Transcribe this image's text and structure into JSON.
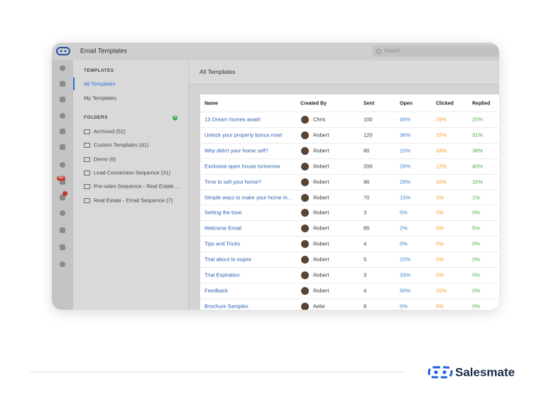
{
  "header": {
    "title": "Email Templates",
    "search_placeholder": "Search"
  },
  "rail": {
    "badge": "99+"
  },
  "sidebar": {
    "templates_heading": "TEMPLATES",
    "templates": [
      "All Templates",
      "My Templates"
    ],
    "folders_heading": "FOLDERS",
    "folders_count": "4",
    "folders": [
      "Archived (52)",
      "Custom Templates (41)",
      "Demo (6)",
      "Lead Conversion Sequence (31)",
      "Pre-sales Sequence - Real Estate ...",
      "Real Estate - Email Sequence (7)"
    ]
  },
  "main": {
    "title": "All Templates",
    "table": {
      "columns": [
        "Name",
        "Created By",
        "Sent",
        "Open",
        "Clicked",
        "Replied"
      ],
      "rows": [
        [
          "13 Dream homes await!",
          "Chris",
          "100",
          "46%",
          "29%",
          "20%"
        ],
        [
          "Unlock your property bonus now!",
          "Robert",
          "120",
          "38%",
          "15%",
          "31%"
        ],
        [
          "Why didn't your home sell?",
          "Robert",
          "80",
          "10%",
          "33%",
          "38%"
        ],
        [
          "Exclusive open house tomorrow",
          "Robert",
          "200",
          "26%",
          "12%",
          "40%"
        ],
        [
          "Time to sell your home?",
          "Robert",
          "90",
          "29%",
          "10%",
          "10%"
        ],
        [
          "Simple ways to make your home m...",
          "Robert",
          "70",
          "15%",
          "3%",
          "1%"
        ],
        [
          "Setting the tone",
          "Robert",
          "3",
          "0%",
          "0%",
          "0%"
        ],
        [
          "Welcome Email",
          "Robert",
          "85",
          "2%",
          "0%",
          "5%"
        ],
        [
          "Tips and Tricks",
          "Robert",
          "4",
          "0%",
          "0%",
          "0%"
        ],
        [
          "Trial about to expire",
          "Robert",
          "5",
          "20%",
          "0%",
          "0%"
        ],
        [
          "Trial Expiration",
          "Robert",
          "3",
          "33%",
          "0%",
          "0%"
        ],
        [
          "Feedback",
          "Robert",
          "4",
          "50%",
          "25%",
          "0%"
        ],
        [
          "Brochure Samples",
          "Aelie",
          "8",
          "0%",
          "0%",
          "0%"
        ]
      ]
    }
  },
  "footer": {
    "brand": "Salesmate"
  }
}
